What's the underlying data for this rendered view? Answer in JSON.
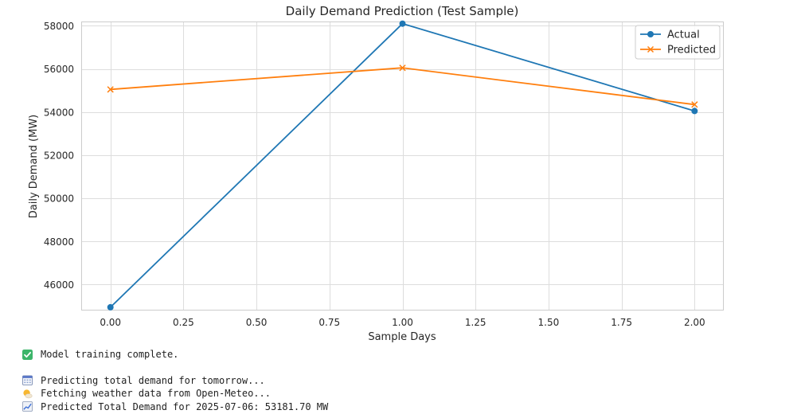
{
  "chart_data": {
    "type": "line",
    "title": "Daily Demand Prediction (Test Sample)",
    "xlabel": "Sample Days",
    "ylabel": "Daily Demand (MW)",
    "x": [
      0,
      1,
      2
    ],
    "xlim": [
      -0.1,
      2.1
    ],
    "ylim": [
      44800,
      58200
    ],
    "xticks": [
      0.0,
      0.25,
      0.5,
      0.75,
      1.0,
      1.25,
      1.5,
      1.75,
      2.0
    ],
    "xtick_labels": [
      "0.00",
      "0.25",
      "0.50",
      "0.75",
      "1.00",
      "1.25",
      "1.50",
      "1.75",
      "2.00"
    ],
    "yticks": [
      46000,
      48000,
      50000,
      52000,
      54000,
      56000,
      58000
    ],
    "ytick_labels": [
      "46000",
      "48000",
      "50000",
      "52000",
      "54000",
      "56000",
      "58000"
    ],
    "grid": true,
    "legend_position": "top-right",
    "series": [
      {
        "name": "Actual",
        "values": [
          44950,
          58100,
          54050
        ],
        "color": "#1f77b4",
        "marker": "circle"
      },
      {
        "name": "Predicted",
        "values": [
          55050,
          56050,
          54350
        ],
        "color": "#ff7f0e",
        "marker": "x"
      }
    ]
  },
  "output": {
    "lines": [
      {
        "icon": "check-mark-icon",
        "text": "Model training complete."
      },
      {
        "icon": "calendar-icon",
        "text": "Predicting total demand for tomorrow..."
      },
      {
        "icon": "sun-cloud-icon",
        "text": "Fetching weather data from Open-Meteo..."
      },
      {
        "icon": "chart-increasing-icon",
        "text": "Predicted Total Demand for 2025-07-06: 53181.70 MW"
      }
    ]
  }
}
